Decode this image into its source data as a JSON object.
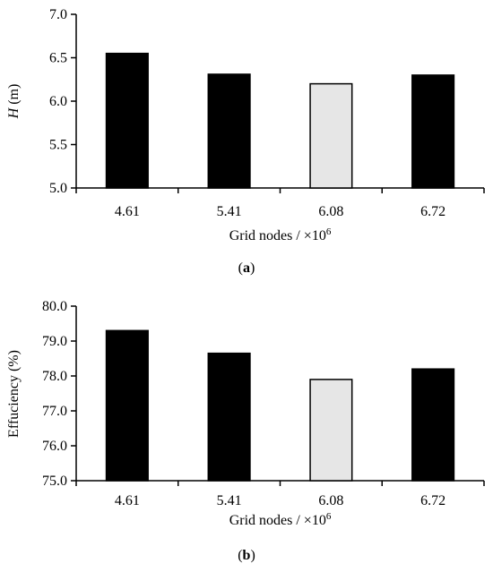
{
  "chart_data": [
    {
      "type": "bar",
      "panel_label": "(a)",
      "panel_letter": "a",
      "categories": [
        "4.61",
        "5.41",
        "6.08",
        "6.72"
      ],
      "values": [
        6.55,
        6.31,
        6.2,
        6.3
      ],
      "bar_colors": [
        "#000000",
        "#000000",
        "#e6e6e6",
        "#000000"
      ],
      "xlabel": "Grid nodes / ×10",
      "xlabel_exp": "6",
      "ylabel_italic": "H",
      "ylabel_rest": " (m)",
      "ylim": [
        5.0,
        7.0
      ],
      "yticks": [
        "5.0",
        "5.5",
        "6.0",
        "6.5",
        "7.0"
      ],
      "grid": false,
      "legend": "none"
    },
    {
      "type": "bar",
      "panel_label": "(b)",
      "panel_letter": "b",
      "categories": [
        "4.61",
        "5.41",
        "6.08",
        "6.72"
      ],
      "values": [
        79.3,
        78.65,
        77.9,
        78.2
      ],
      "bar_colors": [
        "#000000",
        "#000000",
        "#e6e6e6",
        "#000000"
      ],
      "xlabel": "Grid nodes / ×10",
      "xlabel_exp": "6",
      "ylabel": "Effuciency (%)",
      "ylim": [
        75.0,
        80.0
      ],
      "yticks": [
        "75.0",
        "76.0",
        "77.0",
        "78.0",
        "79.0",
        "80.0"
      ],
      "grid": false,
      "legend": "none"
    }
  ]
}
